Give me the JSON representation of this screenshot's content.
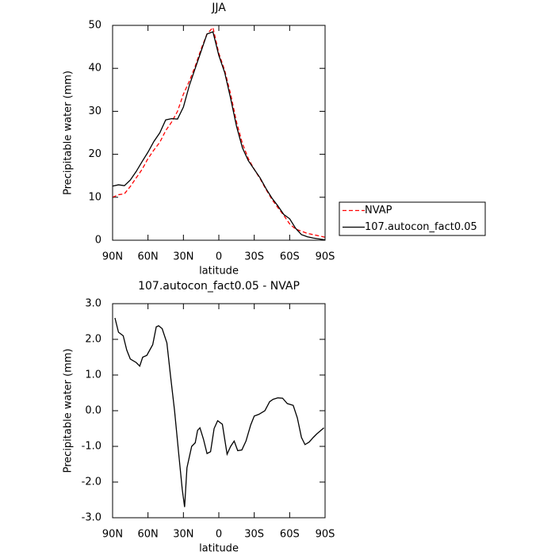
{
  "chart_data": [
    {
      "type": "line",
      "title": "JJA",
      "x_label": "latitude",
      "y_label": "Precipitable water (mm)",
      "x": [
        90,
        85,
        80,
        75,
        70,
        65,
        60,
        55,
        50,
        45,
        40,
        35,
        30,
        25,
        20,
        15,
        10,
        5,
        0,
        -5,
        -10,
        -15,
        -20,
        -25,
        -30,
        -35,
        -40,
        -45,
        -50,
        -55,
        -60,
        -65,
        -70,
        -75,
        -80,
        -85,
        -90
      ],
      "series": [
        {
          "name": "NVAP",
          "color": "#ff0000",
          "linestyle": "dashed",
          "values": [
            10.0,
            10.6,
            10.8,
            12.5,
            14.5,
            16.5,
            19,
            21,
            22.8,
            25.5,
            27.5,
            30,
            34,
            37,
            40.5,
            44.5,
            48,
            49.5,
            43.5,
            39.5,
            34,
            27.5,
            22.5,
            19,
            16.5,
            14.3,
            11.8,
            9.5,
            7.6,
            5.8,
            3.8,
            2.6,
            2.1,
            1.6,
            1.3,
            1.0,
            0.7
          ]
        },
        {
          "name": "107.autocon_fact0.05",
          "color": "#000000",
          "linestyle": "solid",
          "values": [
            12.6,
            12.9,
            12.7,
            14,
            16,
            18.3,
            20.5,
            23,
            25,
            28,
            28.3,
            28.2,
            31,
            36,
            40,
            44,
            48,
            48.5,
            43,
            39,
            33,
            26.5,
            21.5,
            18.5,
            16.5,
            14.5,
            12,
            9.8,
            8,
            6,
            5,
            2.8,
            1.3,
            0.8,
            0.5,
            0.3,
            0.1
          ]
        }
      ],
      "xlim": [
        90,
        -90
      ],
      "xticks": [
        {
          "value": 90,
          "label": "90N"
        },
        {
          "value": 60,
          "label": "60N"
        },
        {
          "value": 30,
          "label": "30N"
        },
        0,
        {
          "value": -30,
          "label": "30S"
        },
        {
          "value": -60,
          "label": "60S"
        },
        {
          "value": -90,
          "label": "90S"
        }
      ],
      "ylim": [
        0,
        50
      ],
      "yticks": [
        0,
        10,
        20,
        30,
        40,
        50
      ],
      "legend": "right"
    },
    {
      "type": "line",
      "title": "107.autocon_fact0.05 - NVAP",
      "x_label": "latitude",
      "y_label": "Precipitable water (mm)",
      "x": [
        88,
        85,
        81,
        78,
        75,
        70,
        67,
        64.5,
        61,
        56,
        53,
        51,
        48,
        44,
        41,
        37.5,
        34,
        31,
        29,
        27,
        23,
        20,
        18,
        16,
        13,
        10,
        7,
        4,
        1,
        -3,
        -5,
        -7,
        -10,
        -13,
        -16,
        -19.5,
        -23,
        -27,
        -30,
        -34,
        -39,
        -43,
        -46,
        -50,
        -54,
        -58,
        -63,
        -66.5,
        -70,
        -73,
        -76.5,
        -80,
        -83,
        -89
      ],
      "series": [
        {
          "name": null,
          "color": "#000000",
          "linestyle": "solid",
          "values": [
            2.6,
            2.2,
            2.1,
            1.7,
            1.45,
            1.35,
            1.25,
            1.5,
            1.55,
            1.85,
            2.35,
            2.38,
            2.3,
            1.9,
            1.0,
            0,
            -1.2,
            -2.2,
            -2.7,
            -1.6,
            -1.0,
            -0.9,
            -0.55,
            -0.48,
            -0.8,
            -1.2,
            -1.15,
            -0.5,
            -0.28,
            -0.38,
            -0.8,
            -1.22,
            -1.0,
            -0.85,
            -1.12,
            -1.1,
            -0.85,
            -0.4,
            -0.15,
            -0.1,
            0.0,
            0.25,
            0.32,
            0.36,
            0.35,
            0.2,
            0.15,
            -0.2,
            -0.75,
            -0.95,
            -0.88,
            -0.75,
            -0.65,
            -0.48
          ]
        }
      ],
      "xlim": [
        90,
        -90
      ],
      "xticks": [
        {
          "value": 90,
          "label": "90N"
        },
        {
          "value": 60,
          "label": "60N"
        },
        {
          "value": 30,
          "label": "30N"
        },
        0,
        {
          "value": -30,
          "label": "30S"
        },
        {
          "value": -60,
          "label": "60S"
        },
        {
          "value": -90,
          "label": "90S"
        }
      ],
      "ylim": [
        -3,
        3
      ],
      "yticks": [
        {
          "value": 3,
          "label": "3.0"
        },
        {
          "value": 2,
          "label": "2.0"
        },
        {
          "value": 1,
          "label": "1.0"
        },
        {
          "value": 0,
          "label": "0.0"
        },
        {
          "value": -1,
          "label": "-1.0"
        },
        {
          "value": -2,
          "label": "-2.0"
        },
        {
          "value": -3,
          "label": "-3.0"
        }
      ]
    }
  ]
}
